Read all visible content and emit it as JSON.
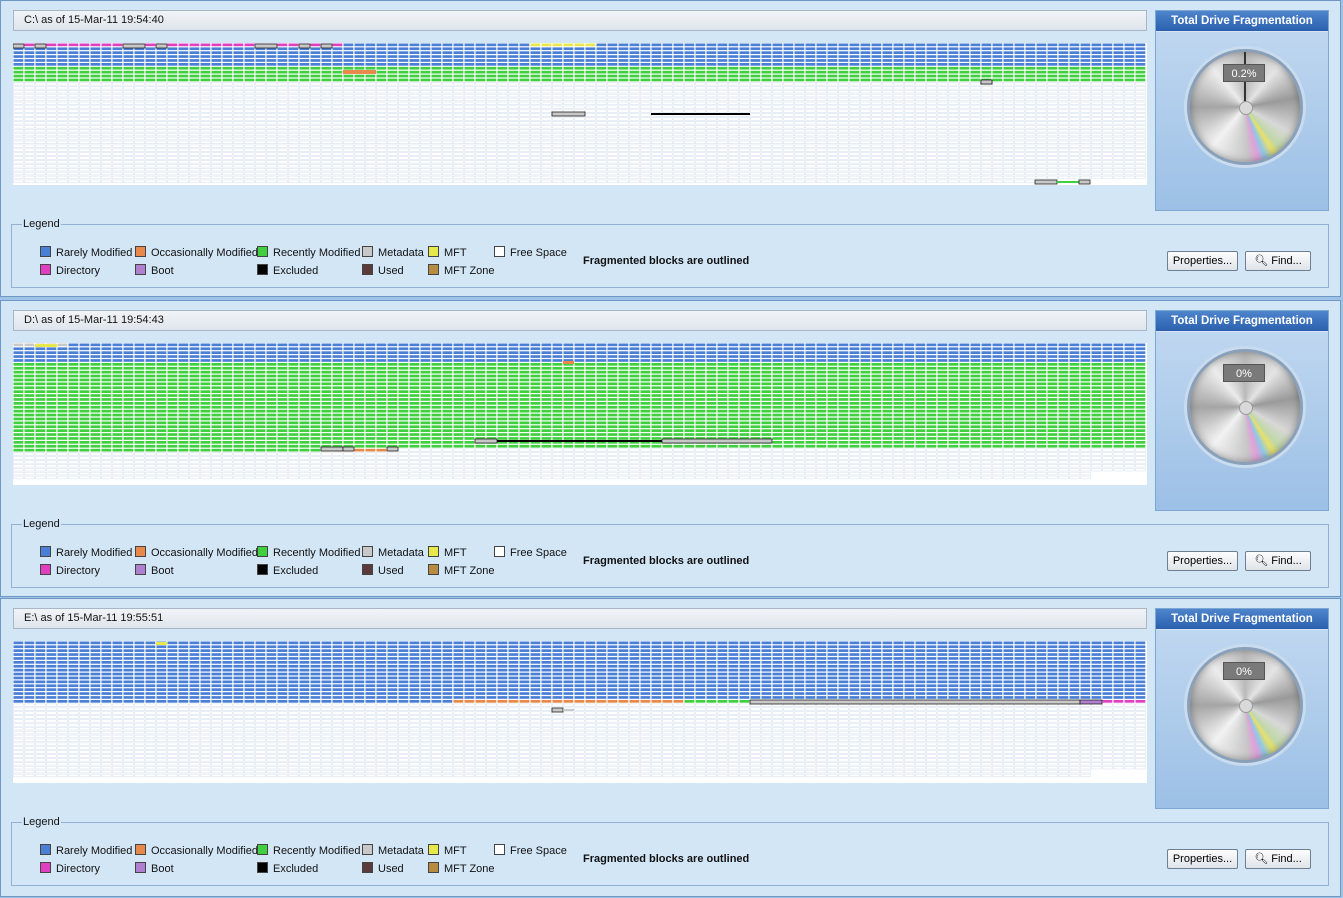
{
  "panels": [
    {
      "title": "C:\\ as of 15-Mar-11 19:54:40",
      "frag_title": "Total Drive Fragmentation",
      "frag_value": "0.2%",
      "needle": true
    },
    {
      "title": "D:\\ as of 15-Mar-11 19:54:43",
      "frag_title": "Total Drive Fragmentation",
      "frag_value": "0%",
      "needle": false
    },
    {
      "title": "E:\\ as of 15-Mar-11 19:55:51",
      "frag_title": "Total Drive Fragmentation",
      "frag_value": "0%",
      "needle": false
    }
  ],
  "legend": {
    "caption": "Legend",
    "rarely": "Rarely Modified",
    "occasionally": "Occasionally Modified",
    "recently": "Recently Modified",
    "metadata": "Metadata",
    "mft": "MFT",
    "free": "Free Space",
    "directory": "Directory",
    "boot": "Boot",
    "excluded": "Excluded",
    "used": "Used",
    "mftzone": "MFT Zone",
    "note": "Fragmented blocks are outlined"
  },
  "buttons": {
    "properties": "Properties...",
    "find": "Find..."
  },
  "colors": {
    "rarely": "#4a7fd6",
    "occasionally": "#e8884a",
    "recently": "#3fcf3f",
    "metadata": "#c8c8c8",
    "mft": "#e8e84a",
    "free": "#ffffff",
    "directory": "#e040c0",
    "boot": "#b080d0",
    "excluded": "#000000",
    "used": "#5a3a3a",
    "mftzone": "#b88c40"
  }
}
